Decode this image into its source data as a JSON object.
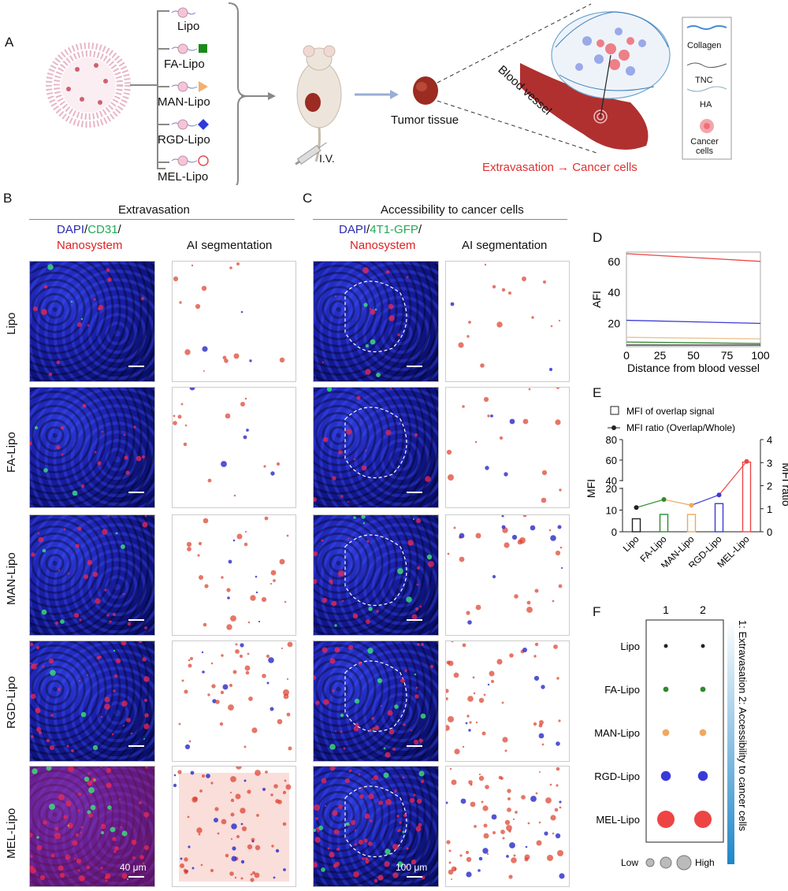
{
  "panelA": {
    "label": "A",
    "formulations": [
      "Lipo",
      "FA-Lipo",
      "MAN-Lipo",
      "RGD-Lipo",
      "MEL-Lipo"
    ],
    "iv": "I.V.",
    "tumor_tissue": "Tumor tissue",
    "blood_vessel": "Blood vessel",
    "extravasation": "Extravasation → Cancer cells",
    "legend": [
      "Collagen",
      "TNC",
      "HA",
      "Cancer cells"
    ]
  },
  "panelB": {
    "label": "B",
    "title": "Extravasation",
    "col1_dapi": "DAPI",
    "col1_cd31": "CD31",
    "col1_nano": "Nanosystem",
    "col2": "AI segmentation",
    "scale": "40 μm"
  },
  "panelC": {
    "label": "C",
    "title": "Accessibility to cancer cells",
    "col1_dapi": "DAPI",
    "col1_gfp": "4T1-GFP",
    "col1_nano": "Nanosystem",
    "col2": "AI segmentation",
    "scale": "100 μm"
  },
  "rows": [
    "Lipo",
    "FA-Lipo",
    "MAN-Lipo",
    "RGD-Lipo",
    "MEL-Lipo"
  ],
  "colors": {
    "Lipo": "#222222",
    "FA-Lipo": "#2e8b2e",
    "MAN-Lipo": "#f0a860",
    "RGD-Lipo": "#3a3ad8",
    "MEL-Lipo": "#ee4444",
    "dapi": "#1a1fa8",
    "green": "#22aa55",
    "red": "#e02020"
  },
  "chart_data": [
    {
      "panel": "D",
      "type": "line",
      "xlabel": "Distance from blood vessel",
      "ylabel": "AFI",
      "xlim": [
        0,
        100
      ],
      "ylim": [
        5,
        66
      ],
      "xticks": [
        0,
        25,
        50,
        75,
        100
      ],
      "yticks": [
        20,
        40,
        60
      ],
      "series": [
        {
          "color": "#ee4444",
          "x": [
            0,
            100
          ],
          "y": [
            65,
            60
          ]
        },
        {
          "color": "#3a3ad8",
          "x": [
            0,
            100
          ],
          "y": [
            22,
            20
          ]
        },
        {
          "color": "#f0c090",
          "x": [
            0,
            100
          ],
          "y": [
            11,
            10
          ]
        },
        {
          "color": "#2e8b2e",
          "x": [
            0,
            100
          ],
          "y": [
            8,
            7
          ]
        },
        {
          "color": "#222222",
          "x": [
            0,
            100
          ],
          "y": [
            6,
            6
          ]
        }
      ]
    },
    {
      "panel": "E",
      "type": "bar",
      "categories": [
        "Lipo",
        "FA-Lipo",
        "MAN-Lipo",
        "RGD-Lipo",
        "MEL-Lipo"
      ],
      "legend": [
        "MFI of overlap signal",
        "MFI ratio (Overlap/Whole)"
      ],
      "ylabel": "MFI",
      "y2label": "MFI ratio",
      "yticks": [
        0,
        10,
        20,
        40,
        60,
        80
      ],
      "y2ticks": [
        0,
        1,
        2,
        3,
        4
      ],
      "bar_values": [
        6,
        8,
        8,
        13,
        58
      ],
      "ratio_values": [
        1.05,
        1.4,
        1.15,
        1.6,
        3.05
      ]
    },
    {
      "panel": "F",
      "type": "scatter",
      "columns": [
        "1",
        "2"
      ],
      "categories": [
        "Lipo",
        "FA-Lipo",
        "MAN-Lipo",
        "RGD-Lipo",
        "MEL-Lipo"
      ],
      "col1_values": [
        1,
        2,
        3,
        5,
        10
      ],
      "col2_values": [
        1,
        2,
        3,
        5,
        10
      ],
      "side_label": "1: Extravasation 2: Accessibility to cancer cells",
      "size_low": "Low",
      "size_high": "High"
    }
  ]
}
